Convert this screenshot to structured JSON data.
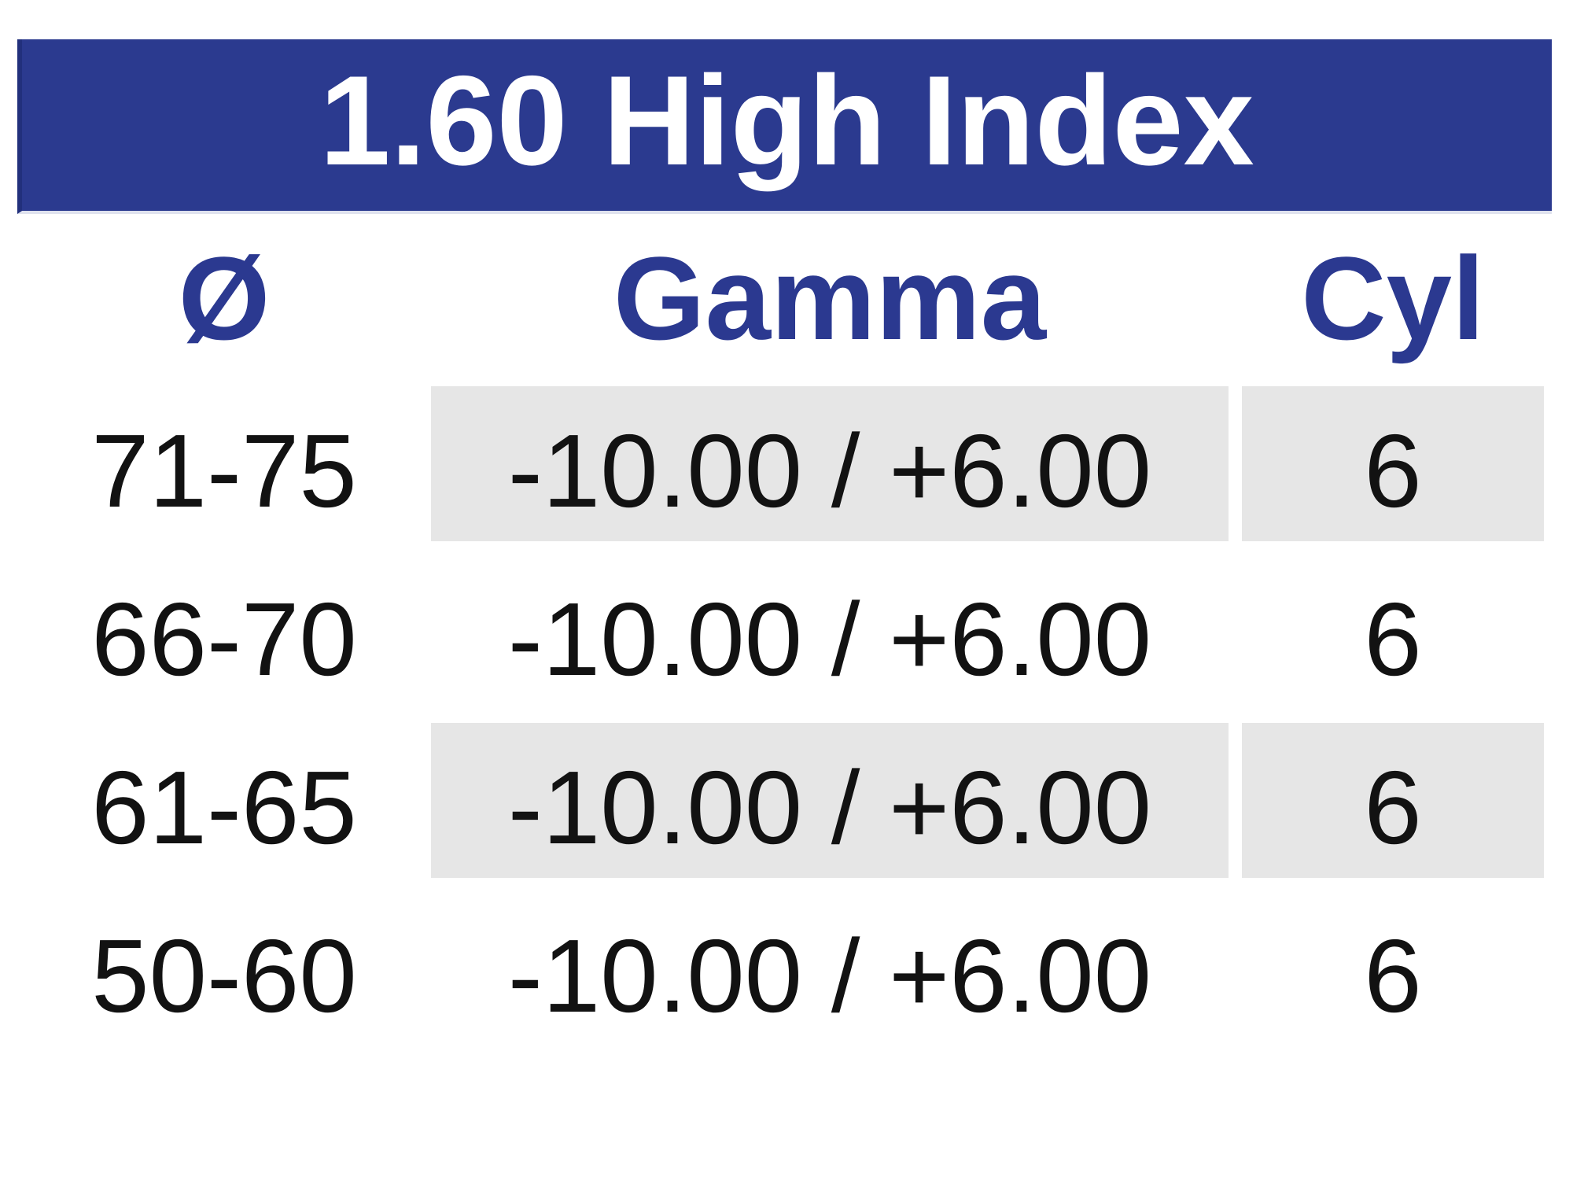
{
  "table": {
    "title": "1.60 High Index",
    "columns": [
      {
        "key": "diameter",
        "label": "Ø"
      },
      {
        "key": "gamma",
        "label": "Gamma"
      },
      {
        "key": "cyl",
        "label": "Cyl"
      }
    ],
    "rows": [
      {
        "diameter": "71-75",
        "gamma": "-10.00 / +6.00",
        "cyl": "6",
        "shaded": true
      },
      {
        "diameter": "66-70",
        "gamma": "-10.00 / +6.00",
        "cyl": "6",
        "shaded": false
      },
      {
        "diameter": "61-65",
        "gamma": "-10.00 / +6.00",
        "cyl": "6",
        "shaded": true
      },
      {
        "diameter": "50-60",
        "gamma": "-10.00 / +6.00",
        "cyl": "6",
        "shaded": false
      }
    ],
    "colors": {
      "title_bar": "#2b3a8f",
      "title_text": "#ffffff",
      "header_text": "#2b3990",
      "row_shade": "#e6e6e6",
      "body_text": "#121212"
    }
  },
  "chart_data": {
    "type": "table",
    "title": "1.60 High Index",
    "columns": [
      "Ø",
      "Gamma",
      "Cyl"
    ],
    "rows": [
      [
        "71-75",
        "-10.00 / +6.00",
        "6"
      ],
      [
        "66-70",
        "-10.00 / +6.00",
        "6"
      ],
      [
        "61-65",
        "-10.00 / +6.00",
        "6"
      ],
      [
        "50-60",
        "-10.00 / +6.00",
        "6"
      ]
    ],
    "layout_hints": {
      "shaded_row_indices": [
        0,
        2
      ],
      "shaded_columns": [
        "Gamma",
        "Cyl"
      ],
      "header_style": "blue bold on white",
      "title_style": "white bold on blue bar"
    }
  }
}
